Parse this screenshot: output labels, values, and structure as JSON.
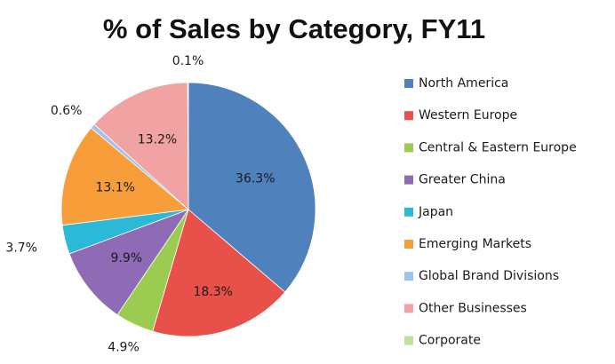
{
  "chart_data": {
    "type": "pie",
    "title": "% of Sales by Category, FY11",
    "legend_position": "right",
    "categories": [
      "North America",
      "Western Europe",
      "Central & Eastern Europe",
      "Greater China",
      "Japan",
      "Emerging Markets",
      "Global Brand Divisions",
      "Other Businesses",
      "Corporate"
    ],
    "values": [
      36.3,
      18.3,
      4.9,
      9.9,
      3.7,
      13.1,
      0.6,
      13.2,
      0.1
    ],
    "data_labels": [
      "36.3%",
      "18.3%",
      "4.9%",
      "9.9%",
      "3.7%",
      "13.1%",
      "0.6%",
      "13.2%",
      "0.1%"
    ],
    "colors": [
      "#4F81BD",
      "#E8504A",
      "#9BCB50",
      "#8E6BB4",
      "#2CB9D8",
      "#F79E3A",
      "#A2C2EE",
      "#F0A3A2",
      "#BFE09A"
    ]
  }
}
